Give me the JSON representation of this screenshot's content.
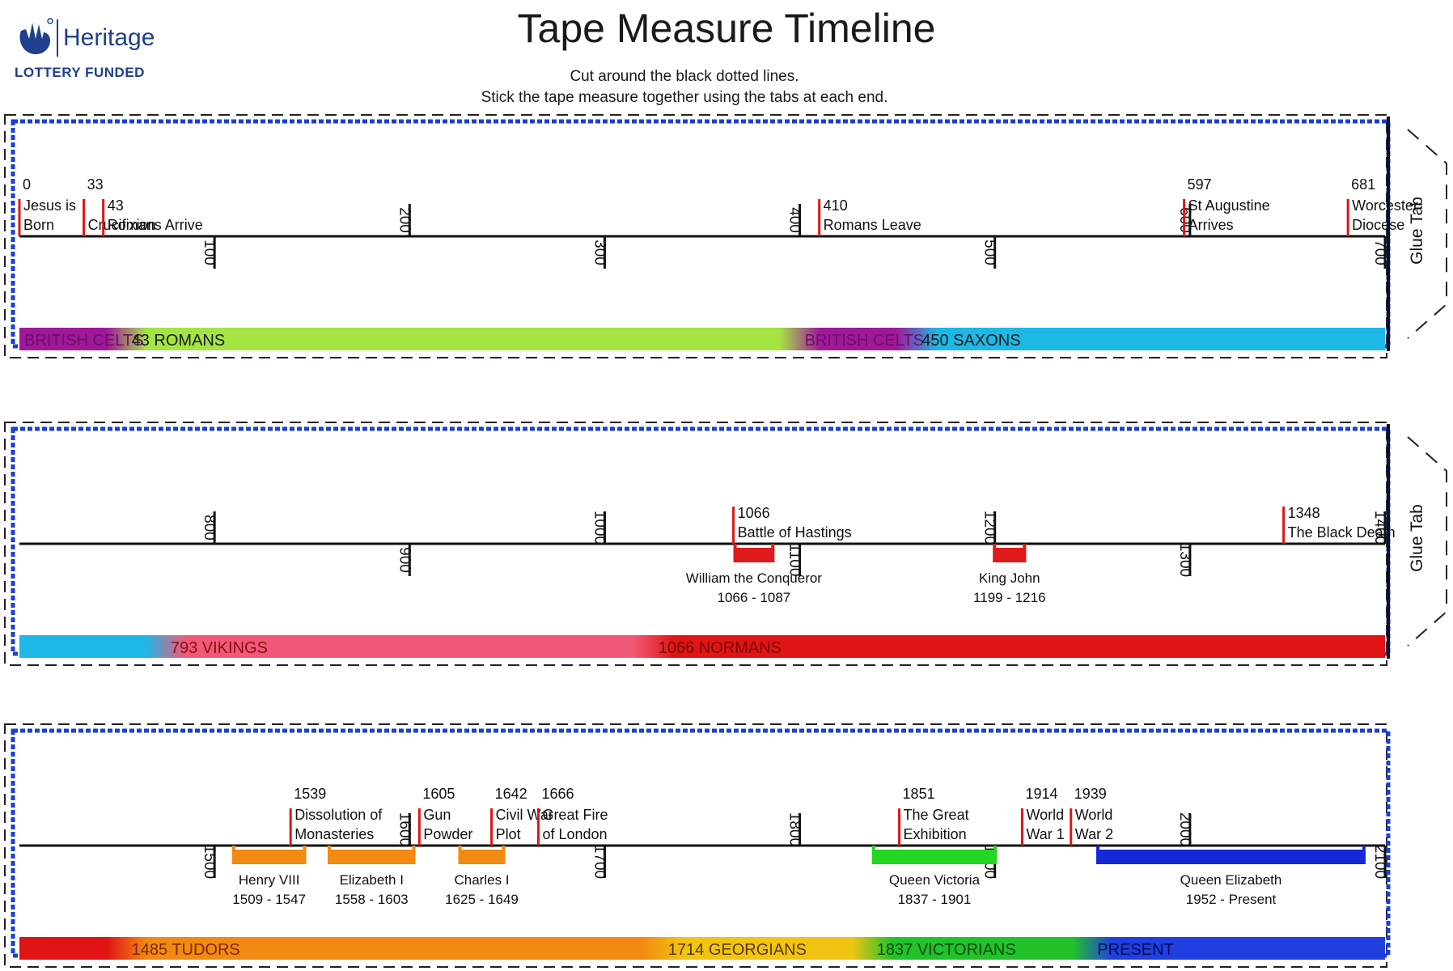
{
  "header": {
    "logo_brand": "Heritage",
    "logo_sub": "LOTTERY FUNDED",
    "title": "Tape Measure Timeline",
    "instruction_1": "Cut around the black dotted lines.",
    "instruction_2": "Stick the tape measure together using the tabs at each end."
  },
  "strips": [
    {
      "glue_tab": "Glue Tab",
      "axis_start": 0,
      "axis_end": 700,
      "ticks": [
        {
          "label": "100",
          "value": 100,
          "side": "below"
        },
        {
          "label": "200",
          "value": 200,
          "side": "above"
        },
        {
          "label": "300",
          "value": 300,
          "side": "below"
        },
        {
          "label": "400",
          "value": 400,
          "side": "above"
        },
        {
          "label": "500",
          "value": 500,
          "side": "below"
        },
        {
          "label": "600",
          "value": 600,
          "side": "above"
        },
        {
          "label": "700",
          "value": 700,
          "side": "below"
        }
      ],
      "events": [
        {
          "value": 0,
          "year": "0",
          "line1": "Jesus is",
          "line2": "Born"
        },
        {
          "value": 33,
          "year": "33",
          "line1": "",
          "line2": "Crucifixion"
        },
        {
          "value": 43,
          "year": "",
          "line1": "43",
          "line2": "Romans Arrive"
        },
        {
          "value": 410,
          "year": "",
          "line1": "410",
          "line2": "Romans Leave"
        },
        {
          "value": 597,
          "year": "597",
          "line1": "St Augustine",
          "line2": "Arrives"
        },
        {
          "value": 681,
          "year": "681",
          "line1": "Worcester",
          "line2": "Diocese"
        }
      ],
      "periods": [],
      "eras": [
        {
          "label": "BRITISH CELTS",
          "start": 0,
          "end": 55,
          "color": "#a0189a",
          "text_color": "#6d0f6a"
        },
        {
          "label": "43 ROMANS",
          "start": 55,
          "end": 400,
          "color": "#a4e544",
          "text_color": "#1a1a1a"
        },
        {
          "label": "BRITISH CELTS",
          "start": 400,
          "end": 460,
          "color": "#a0189a",
          "text_color": "#6d0f6a"
        },
        {
          "label": "450 SAXONS",
          "start": 460,
          "end": 700,
          "color": "#1db8e6",
          "text_color": "#1a1a1a"
        }
      ]
    },
    {
      "glue_tab": "Glue Tab",
      "axis_start": 700,
      "axis_end": 1400,
      "ticks": [
        {
          "label": "800",
          "value": 800,
          "side": "above"
        },
        {
          "label": "900",
          "value": 900,
          "side": "below"
        },
        {
          "label": "1000",
          "value": 1000,
          "side": "above"
        },
        {
          "label": "1100",
          "value": 1100,
          "side": "below"
        },
        {
          "label": "1200",
          "value": 1200,
          "side": "above"
        },
        {
          "label": "1300",
          "value": 1300,
          "side": "below"
        },
        {
          "label": "1400",
          "value": 1400,
          "side": "above"
        }
      ],
      "events": [
        {
          "value": 1066,
          "year": "",
          "line1": "1066",
          "line2": "Battle of Hastings"
        },
        {
          "value": 1348,
          "year": "",
          "line1": "1348",
          "line2": "The Black Death"
        }
      ],
      "periods": [
        {
          "start": 1066,
          "end": 1087,
          "name": "William the Conqueror",
          "dates": "1066 - 1087",
          "color": "#e01a1a"
        },
        {
          "start": 1199,
          "end": 1216,
          "name": "King John",
          "dates": "1199 - 1216",
          "color": "#e01a1a"
        }
      ],
      "eras": [
        {
          "label": "",
          "start": 700,
          "end": 775,
          "color": "#1db8e6",
          "text_color": "#1a1a1a"
        },
        {
          "label": "793 VIKINGS",
          "start": 775,
          "end": 1025,
          "color": "#f05a78",
          "text_color": "#8a0f12"
        },
        {
          "label": "1066 NORMANS",
          "start": 1025,
          "end": 1400,
          "color": "#e01414",
          "text_color": "#7a0808"
        }
      ]
    },
    {
      "glue_tab": "",
      "axis_start": 1400,
      "axis_end": 2100,
      "ticks": [
        {
          "label": "1500",
          "value": 1500,
          "side": "below"
        },
        {
          "label": "1600",
          "value": 1600,
          "side": "above"
        },
        {
          "label": "1700",
          "value": 1700,
          "side": "below"
        },
        {
          "label": "1800",
          "value": 1800,
          "side": "above"
        },
        {
          "label": "1900",
          "value": 1900,
          "side": "below"
        },
        {
          "label": "2000",
          "value": 2000,
          "side": "above"
        },
        {
          "label": "2100",
          "value": 2100,
          "side": "below"
        }
      ],
      "events": [
        {
          "value": 1539,
          "year": "1539",
          "line1": "Dissolution of",
          "line2": "Monasteries"
        },
        {
          "value": 1605,
          "year": "1605",
          "line1": "Gun",
          "line2": "Powder"
        },
        {
          "value": 1642,
          "year": "1642",
          "line1": "Civil War",
          "line2": "Plot"
        },
        {
          "value": 1666,
          "year": "1666",
          "line1": "Great Fire",
          "line2": "of London"
        },
        {
          "value": 1851,
          "year": "1851",
          "line1": "The Great",
          "line2": "Exhibition"
        },
        {
          "value": 1914,
          "year": "1914",
          "line1": "World",
          "line2": "War 1"
        },
        {
          "value": 1939,
          "year": "1939",
          "line1": "World",
          "line2": "War 2"
        }
      ],
      "periods": [
        {
          "start": 1509,
          "end": 1547,
          "name": "Henry VIII",
          "dates": "1509 - 1547",
          "color": "#f28a12"
        },
        {
          "start": 1558,
          "end": 1603,
          "name": "Elizabeth I",
          "dates": "1558 - 1603",
          "color": "#f28a12"
        },
        {
          "start": 1625,
          "end": 1649,
          "name": "Charles I",
          "dates": "1625 - 1649",
          "color": "#f28a12"
        },
        {
          "start": 1837,
          "end": 1901,
          "name": "Queen Victoria",
          "dates": "1837 - 1901",
          "color": "#22d622"
        },
        {
          "start": 1952,
          "end": 2090,
          "name": "Queen Elizabeth",
          "dates": "1952 - Present",
          "color": "#1428d8"
        }
      ],
      "eras": [
        {
          "label": "",
          "start": 1400,
          "end": 1455,
          "color": "#e01414",
          "text_color": "#1a1a1a"
        },
        {
          "label": "1485 TUDORS",
          "start": 1455,
          "end": 1730,
          "color": "#f28a12",
          "text_color": "#7a2a00"
        },
        {
          "label": "1714 GEORGIANS",
          "start": 1730,
          "end": 1837,
          "color": "#f2c412",
          "text_color": "#5a3a00"
        },
        {
          "label": "1837 VICTORIANS",
          "start": 1837,
          "end": 1950,
          "color": "#22c22a",
          "text_color": "#0a4a0a"
        },
        {
          "label": "PRESENT",
          "start": 1950,
          "end": 2100,
          "color": "#1f3fe0",
          "text_color": "#0a0a5a"
        }
      ]
    }
  ]
}
